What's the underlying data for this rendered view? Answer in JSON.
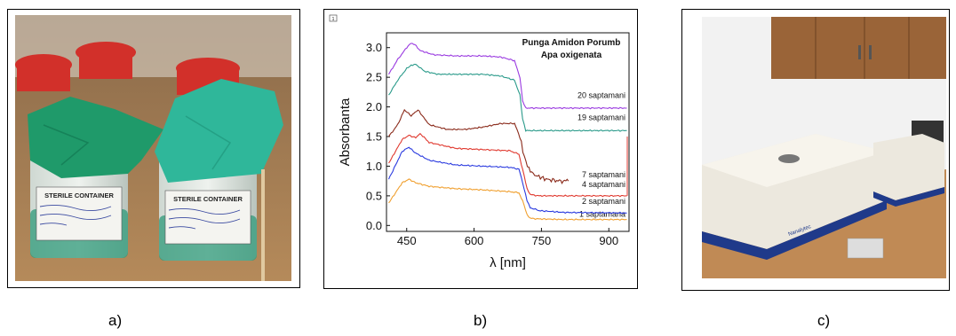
{
  "captions": {
    "a": "a)",
    "b": "b)",
    "c": "c)"
  },
  "photo_a": {
    "label_lines": [
      "STERILE CONTAINER",
      "STERILE CONTAINER"
    ],
    "colors": {
      "lid": "#d2302a",
      "bag_left": "#1f9a6a",
      "bag_right": "#2fb79a",
      "liquid": "#2f9a7a",
      "table": "#b58a5a"
    }
  },
  "photo_c": {
    "brand": "Nanalytec",
    "colors": {
      "cabinet": "#9a6438",
      "wall": "#f2f2f2",
      "counter": "#c08a55",
      "device": "#ece8de",
      "stripe": "#1f3a8a"
    }
  },
  "chart_data": {
    "type": "line",
    "corner_mark": "1",
    "title_lines": [
      "Punga Amidon Porumb",
      "Apa oxigenata"
    ],
    "xlabel": "λ [nm]",
    "ylabel": "Absorbanta",
    "xlim": [
      405,
      945
    ],
    "ylim": [
      -0.1,
      3.25
    ],
    "xticks": [
      450,
      600,
      750,
      900
    ],
    "yticks": [
      0.0,
      0.5,
      1.0,
      1.5,
      2.0,
      2.5,
      3.0
    ],
    "ytick_labels": [
      "0.0",
      "0.5",
      "1.0",
      "1.5",
      "2.0",
      "2.5",
      "3.0"
    ],
    "series": [
      {
        "name": "1 saptamana",
        "color": "#f0a030",
        "offset": 0.0,
        "x": [
          410,
          440,
          455,
          470,
          500,
          560,
          620,
          680,
          700,
          708,
          718,
          725,
          745,
          800,
          940
        ],
        "y": [
          0.38,
          0.72,
          0.78,
          0.72,
          0.66,
          0.62,
          0.6,
          0.57,
          0.55,
          0.42,
          0.18,
          0.12,
          0.11,
          0.1,
          0.1
        ]
      },
      {
        "name": "2 saptamani",
        "color": "#2a3adf",
        "offset": 0.0,
        "x": [
          410,
          440,
          455,
          470,
          500,
          560,
          620,
          680,
          700,
          708,
          718,
          725,
          745,
          800,
          940
        ],
        "y": [
          0.78,
          1.25,
          1.32,
          1.22,
          1.1,
          1.02,
          1.0,
          0.98,
          0.95,
          0.72,
          0.42,
          0.3,
          0.25,
          0.22,
          0.21
        ]
      },
      {
        "name": "4 saptamani",
        "color": "#e03a30",
        "offset": 0.0,
        "x": [
          410,
          440,
          455,
          470,
          480,
          500,
          560,
          620,
          680,
          700,
          708,
          718,
          725,
          745,
          800,
          940
        ],
        "y": [
          1.05,
          1.45,
          1.52,
          1.48,
          1.55,
          1.4,
          1.3,
          1.28,
          1.26,
          1.2,
          0.95,
          0.62,
          0.52,
          0.5,
          0.5,
          0.5
        ]
      },
      {
        "name": "7 saptamani",
        "color": "#8a2a1a",
        "offset": 0.0,
        "x": [
          410,
          430,
          445,
          460,
          475,
          500,
          540,
          580,
          620,
          660,
          690,
          702,
          712,
          722,
          735,
          760,
          790,
          810
        ],
        "y": [
          1.5,
          1.7,
          1.95,
          1.85,
          1.95,
          1.7,
          1.62,
          1.62,
          1.66,
          1.72,
          1.72,
          1.5,
          1.15,
          0.95,
          0.85,
          0.78,
          0.75,
          0.75
        ]
      },
      {
        "name": "19 saptamani",
        "color": "#2a9a8a",
        "offset": 0.0,
        "x": [
          410,
          430,
          450,
          460,
          470,
          490,
          520,
          560,
          620,
          660,
          690,
          702,
          708,
          715,
          940
        ],
        "y": [
          2.2,
          2.45,
          2.65,
          2.7,
          2.72,
          2.6,
          2.55,
          2.55,
          2.55,
          2.52,
          2.45,
          2.2,
          1.8,
          1.6,
          1.6
        ]
      },
      {
        "name": "20 saptamani",
        "color": "#9a3ae0",
        "offset": 0.0,
        "x": [
          410,
          430,
          450,
          460,
          468,
          480,
          510,
          560,
          620,
          660,
          690,
          702,
          708,
          715,
          940
        ],
        "y": [
          2.55,
          2.8,
          3.0,
          3.08,
          3.05,
          2.95,
          2.88,
          2.86,
          2.86,
          2.84,
          2.78,
          2.5,
          2.1,
          1.98,
          1.98
        ]
      }
    ],
    "series_label_y": {
      "20 saptamani": 2.12,
      "19 saptamani": 1.75,
      "7 saptamani": 0.78,
      "4 saptamani": 0.62,
      "2 saptamani": 0.33,
      "1 saptamana": 0.12
    }
  }
}
